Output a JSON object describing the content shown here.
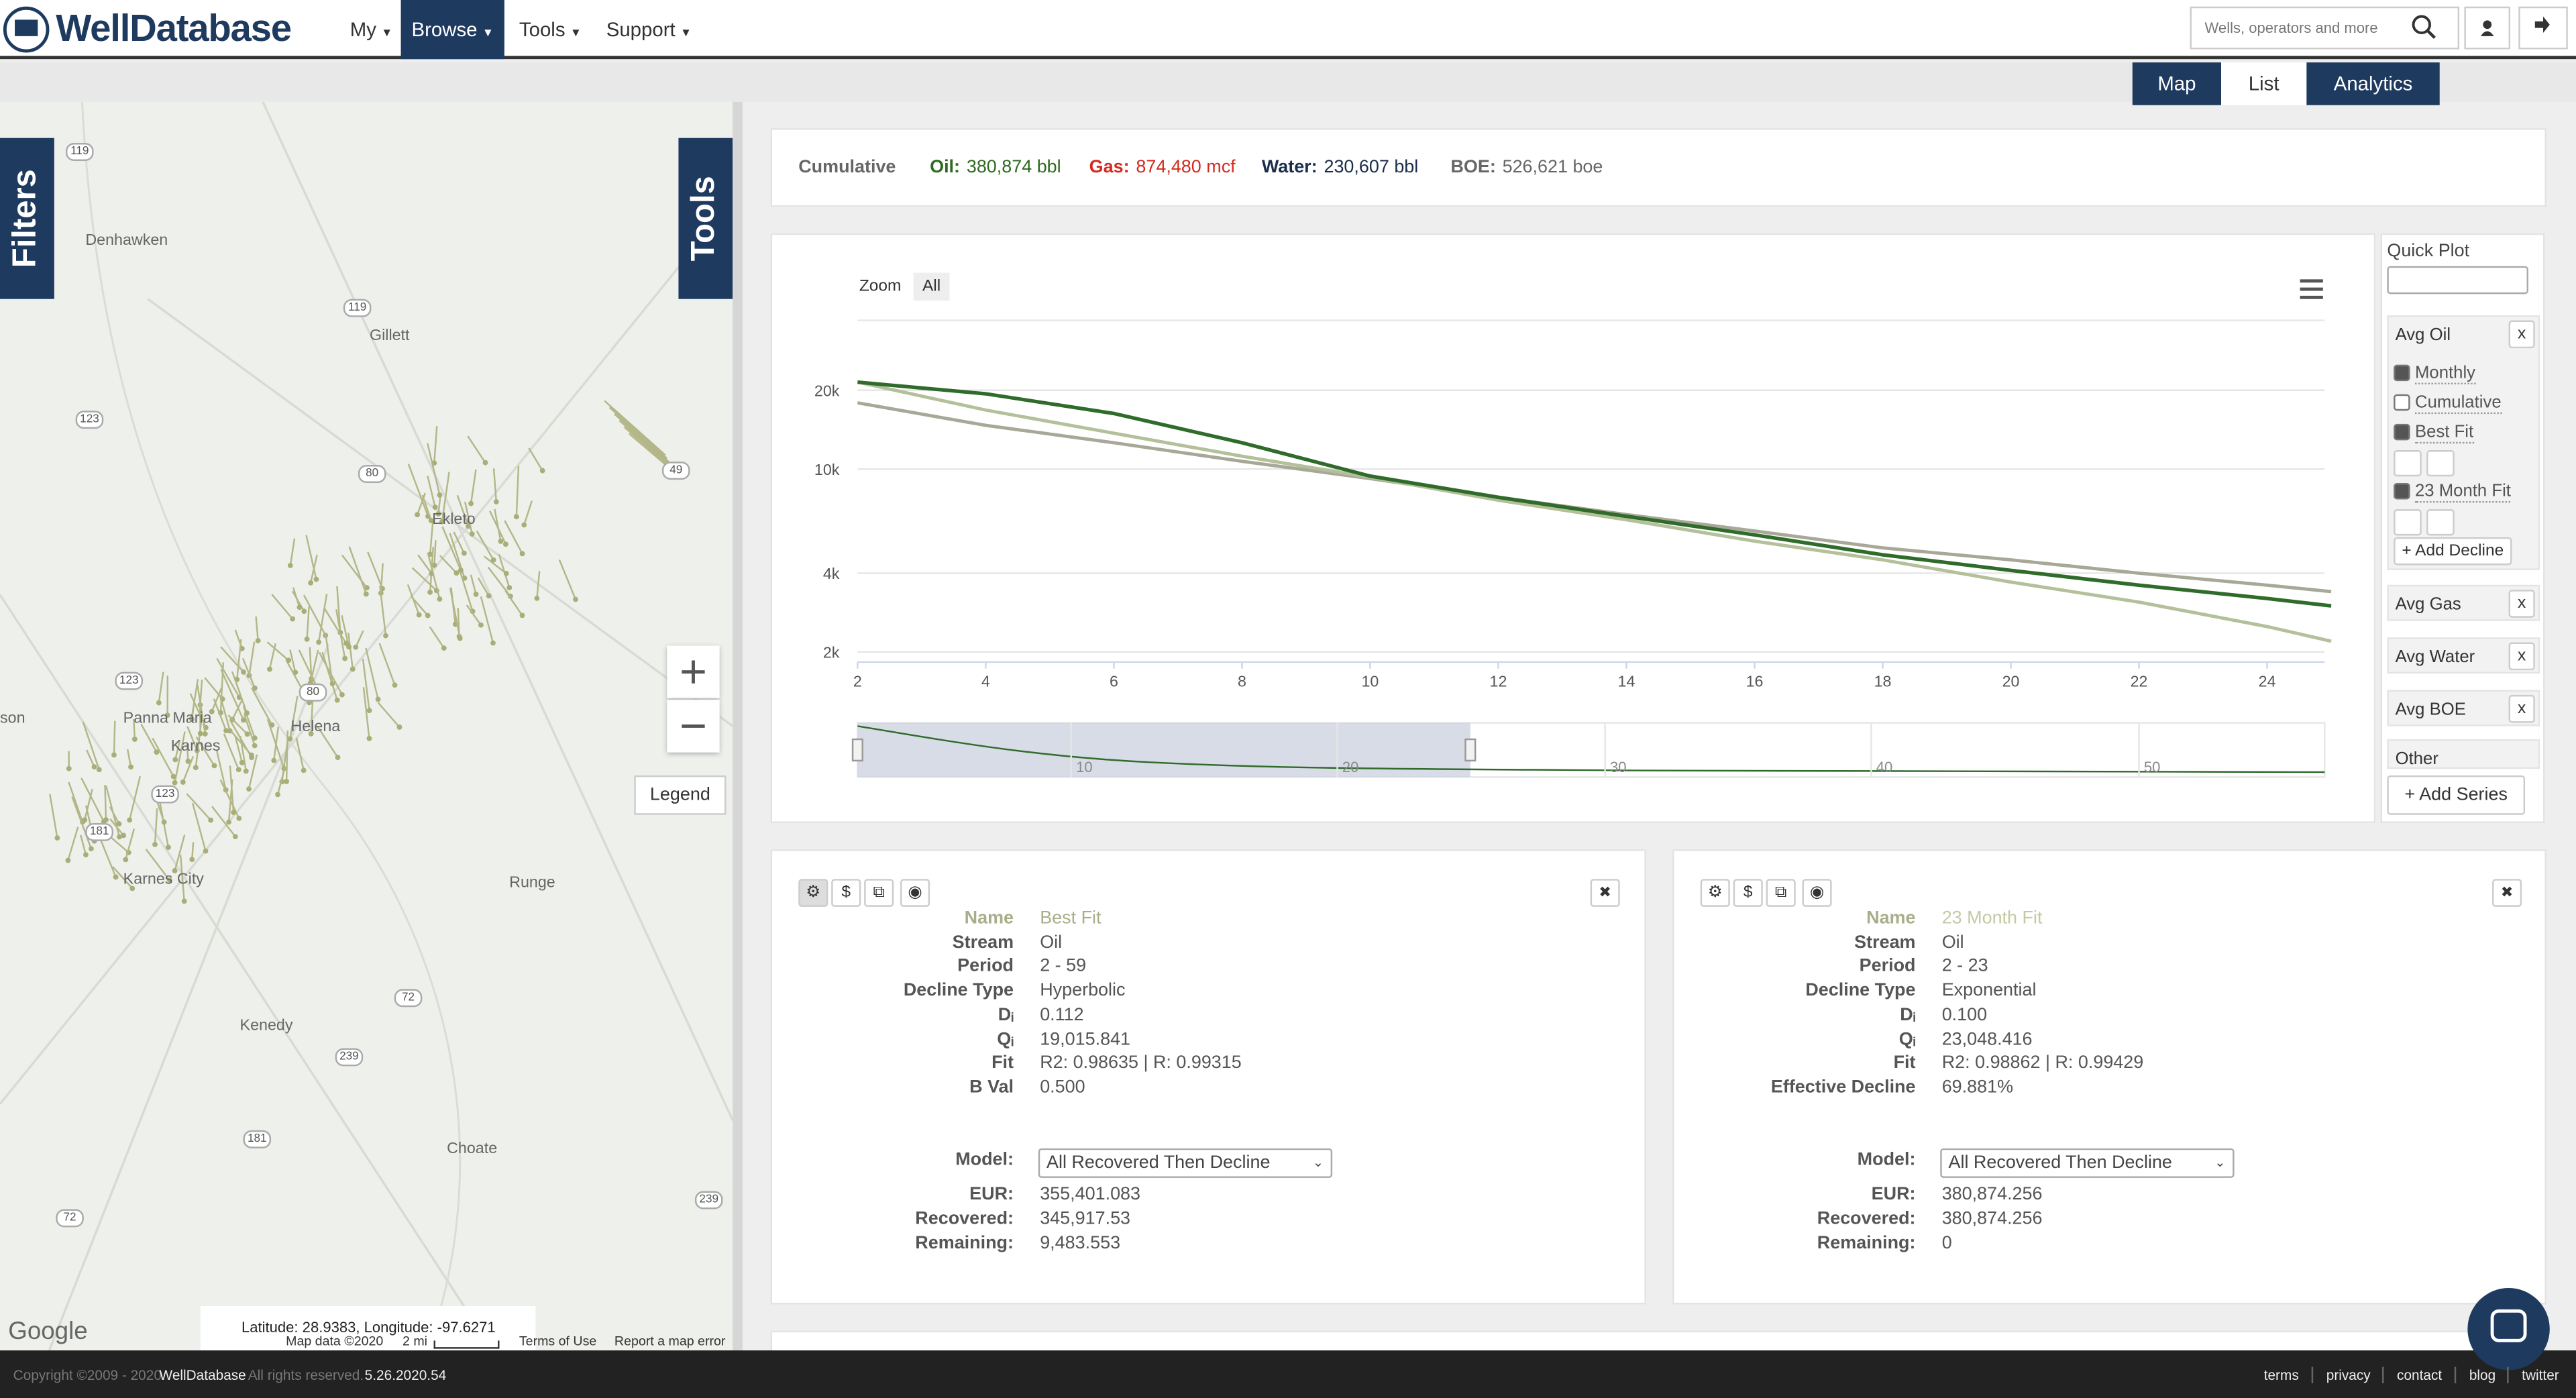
{
  "header": {
    "logo": "WellDatabase",
    "nav": [
      "My",
      "Browse",
      "Tools",
      "Support"
    ],
    "search": "Wells, operators and more"
  },
  "views": [
    "Map",
    "List",
    "Analytics"
  ],
  "map": {
    "tabs": [
      "Filters",
      "Tools"
    ],
    "places": [
      "Denhawken",
      "Gillett",
      "Ekleto",
      "son",
      "Panna Maria",
      "Helena",
      "Karnes",
      "Karnes City",
      "Runge",
      "Kenedy",
      "Choate"
    ],
    "roads": [
      "119",
      "119",
      "123",
      "80",
      "49",
      "123",
      "80",
      "123",
      "181",
      "72",
      "239",
      "181",
      "72",
      "239"
    ],
    "legend": "Legend",
    "coords": "Latitude: 28.9383, Longitude: -97.6271",
    "attribution": [
      "Map data ©2020",
      "2 mi",
      "Terms of Use",
      "Report a map error"
    ],
    "google": "Google"
  },
  "summary": {
    "label": "Cumulative",
    "items": [
      {
        "label": "Oil:",
        "value": "380,874 bbl",
        "color": "#2d6a1f"
      },
      {
        "label": "Gas:",
        "value": "874,480 mcf",
        "color": "#d42a1e"
      },
      {
        "label": "Water:",
        "value": "230,607 bbl",
        "color": "#1b2d4a"
      },
      {
        "label": "BOE:",
        "value": "526,621 boe",
        "color": "#666666"
      }
    ]
  },
  "chart": {
    "type": "line",
    "zoom": "Zoom",
    "zoom_all": "All",
    "log_y": true,
    "x": [
      2,
      4,
      6,
      8,
      10,
      12,
      14,
      16,
      18,
      20,
      22,
      24,
      25
    ],
    "xlim": [
      2,
      25
    ],
    "xticks": [
      2,
      4,
      6,
      8,
      10,
      12,
      14,
      16,
      18,
      20,
      22,
      24
    ],
    "ylim": [
      1830,
      37000
    ],
    "yticks": [
      {
        "value": 2000,
        "label": "2k"
      },
      {
        "value": 4000,
        "label": "4k"
      },
      {
        "value": 10000,
        "label": "10k"
      },
      {
        "value": 20000,
        "label": "20k"
      }
    ],
    "series": [
      {
        "name": "Monthly",
        "color": "#2f6b2a",
        "values": [
          21500,
          19400,
          16300,
          12600,
          9400,
          7800,
          6600,
          5600,
          4700,
          4100,
          3600,
          3200,
          3000
        ]
      },
      {
        "name": "Best Fit",
        "color": "#b3c09a",
        "values": [
          21500,
          16800,
          13700,
          11200,
          9300,
          7600,
          6400,
          5300,
          4500,
          3700,
          3100,
          2500,
          2200
        ]
      },
      {
        "name": "23 Month Fit",
        "color": "#a8a898",
        "values": [
          17900,
          14700,
          12600,
          10700,
          9200,
          7800,
          6700,
          5800,
          5000,
          4500,
          4000,
          3600,
          3400
        ]
      }
    ],
    "navigator_ticks": [
      "10",
      "20",
      "30",
      "40",
      "50"
    ]
  },
  "sidebar": {
    "quick_plot": "Quick Plot",
    "groups": [
      "Avg Oil",
      "Avg Gas",
      "Avg Water",
      "Avg BOE",
      "Other"
    ],
    "close": "x",
    "checks": [
      {
        "label": "Monthly",
        "checked": true
      },
      {
        "label": "Cumulative",
        "checked": false
      },
      {
        "label": "Best Fit",
        "checked": true
      },
      {
        "label": "23 Month Fit",
        "checked": true
      }
    ],
    "add_decline": "+ Add Decline",
    "add_series": "+ Add Series"
  },
  "panels": [
    {
      "rows": [
        [
          "Name",
          "Best Fit"
        ],
        [
          "Stream",
          "Oil"
        ],
        [
          "Period",
          "2 - 59"
        ],
        [
          "Decline Type",
          "Hyperbolic"
        ],
        [
          "Dᵢ",
          "0.112"
        ],
        [
          "Qᵢ",
          "19,015.841"
        ],
        [
          "Fit",
          "R2: 0.98635 | R: 0.99315"
        ],
        [
          "B Val",
          "0.500"
        ]
      ],
      "model_label": "Model:",
      "model": "All Recovered Then Decline",
      "totals": [
        [
          "EUR:",
          "355,401.083"
        ],
        [
          "Recovered:",
          "345,917.53"
        ],
        [
          "Remaining:",
          "9,483.553"
        ]
      ]
    },
    {
      "rows": [
        [
          "Name",
          "23 Month Fit"
        ],
        [
          "Stream",
          "Oil"
        ],
        [
          "Period",
          "2 - 23"
        ],
        [
          "Decline Type",
          "Exponential"
        ],
        [
          "Dᵢ",
          "0.100"
        ],
        [
          "Qᵢ",
          "23,048.416"
        ],
        [
          "Fit",
          "R2: 0.98862 | R: 0.99429"
        ],
        [
          "Effective Decline",
          "69.881%"
        ]
      ],
      "model_label": "Model:",
      "model": "All Recovered Then Decline",
      "totals": [
        [
          "EUR:",
          "380,874.256"
        ],
        [
          "Recovered:",
          "380,874.256"
        ],
        [
          "Remaining:",
          "0"
        ]
      ]
    }
  ],
  "panel_buttons": [
    "⚙",
    "$",
    "⧉",
    "◉"
  ],
  "panel_close": "✖",
  "footer": {
    "copyright": "Copyright ©2009 - 2020",
    "brand": "WellDatabase",
    "rights": "All rights reserved.",
    "version": "5.26.2020.54",
    "links": [
      "terms",
      "privacy",
      "contact",
      "blog",
      "twitter"
    ]
  }
}
